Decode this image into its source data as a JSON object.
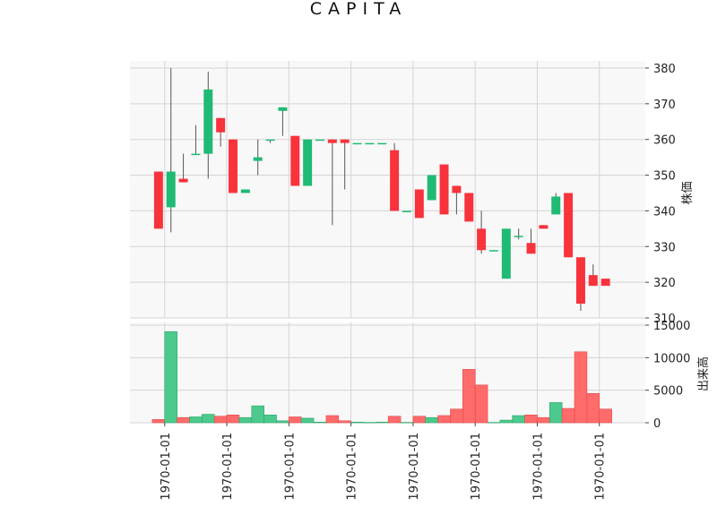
{
  "chart_data": {
    "type": "candlestick",
    "title": "CAPITA",
    "price_axis_label": "株価",
    "volume_axis_label": "出来高",
    "price_ylim": [
      310,
      382
    ],
    "price_ticks": [
      310,
      320,
      330,
      340,
      350,
      360,
      370,
      380
    ],
    "volume_ylim": [
      0,
      15000
    ],
    "volume_ticks": [
      0,
      5000,
      10000,
      15000
    ],
    "volume_tick_labels": [
      "0",
      "5000",
      "10000",
      "15000"
    ],
    "x_tick_labels": [
      "1970-01-01",
      "1970-01-01",
      "1970-01-01",
      "1970-01-01",
      "1970-01-01",
      "1970-01-01",
      "1970-01-01",
      "1970-01-01"
    ],
    "x_tick_index": [
      0.5,
      5.5,
      10.5,
      15.5,
      20.5,
      25.5,
      30.5,
      35.5
    ],
    "grid": true,
    "colors": {
      "up": "#1fba73",
      "down": "#f8333c",
      "up_volume": "#4cc98c",
      "down_volume": "#ff6b6b",
      "wick": "#555555",
      "panel_bg": "#f8f8f8",
      "grid": "#d4d4d4"
    },
    "candles": [
      {
        "open": 351,
        "high": 351,
        "low": 335,
        "close": 335,
        "volume": 500
      },
      {
        "open": 341,
        "high": 380,
        "low": 334,
        "close": 351,
        "volume": 14000
      },
      {
        "open": 349,
        "high": 356,
        "low": 348,
        "close": 348,
        "volume": 800
      },
      {
        "open": 356,
        "high": 364,
        "low": 356,
        "close": 356,
        "volume": 900
      },
      {
        "open": 356,
        "high": 379,
        "low": 349,
        "close": 374,
        "volume": 1300
      },
      {
        "open": 366,
        "high": 366,
        "low": 358,
        "close": 362,
        "volume": 1000
      },
      {
        "open": 360,
        "high": 360,
        "low": 345,
        "close": 345,
        "volume": 1200
      },
      {
        "open": 345,
        "high": 346,
        "low": 345,
        "close": 346,
        "volume": 800
      },
      {
        "open": 354,
        "high": 360,
        "low": 350,
        "close": 355,
        "volume": 2600
      },
      {
        "open": 360,
        "high": 360,
        "low": 359,
        "close": 360,
        "volume": 1200
      },
      {
        "open": 368,
        "high": 369,
        "low": 361,
        "close": 369,
        "volume": 300
      },
      {
        "open": 361,
        "high": 361,
        "low": 347,
        "close": 347,
        "volume": 900
      },
      {
        "open": 347,
        "high": 360,
        "low": 347,
        "close": 360,
        "volume": 700
      },
      {
        "open": 360,
        "high": 360,
        "low": 360,
        "close": 360,
        "volume": 100
      },
      {
        "open": 360,
        "high": 360,
        "low": 336,
        "close": 359,
        "volume": 1100
      },
      {
        "open": 360,
        "high": 360,
        "low": 346,
        "close": 359,
        "volume": 300
      },
      {
        "open": 359,
        "high": 359,
        "low": 359,
        "close": 359,
        "volume": 100
      },
      {
        "open": 359,
        "high": 359,
        "low": 359,
        "close": 359,
        "volume": 50
      },
      {
        "open": 359,
        "high": 359,
        "low": 359,
        "close": 359,
        "volume": 100
      },
      {
        "open": 357,
        "high": 359,
        "low": 340,
        "close": 340,
        "volume": 1000
      },
      {
        "open": 340,
        "high": 340,
        "low": 340,
        "close": 340,
        "volume": 50
      },
      {
        "open": 346,
        "high": 346,
        "low": 338,
        "close": 338,
        "volume": 1000
      },
      {
        "open": 343,
        "high": 350,
        "low": 343,
        "close": 350,
        "volume": 800
      },
      {
        "open": 353,
        "high": 353,
        "low": 339,
        "close": 339,
        "volume": 1100
      },
      {
        "open": 347,
        "high": 347,
        "low": 339,
        "close": 345,
        "volume": 2100
      },
      {
        "open": 345,
        "high": 345,
        "low": 337,
        "close": 337,
        "volume": 8200
      },
      {
        "open": 335,
        "high": 340,
        "low": 328,
        "close": 329,
        "volume": 5800
      },
      {
        "open": 329,
        "high": 329,
        "low": 329,
        "close": 329,
        "volume": 50
      },
      {
        "open": 321,
        "high": 335,
        "low": 321,
        "close": 335,
        "volume": 400
      },
      {
        "open": 333,
        "high": 335,
        "low": 332,
        "close": 333,
        "volume": 1100
      },
      {
        "open": 331,
        "high": 335,
        "low": 328,
        "close": 328,
        "volume": 1200
      },
      {
        "open": 336,
        "high": 336,
        "low": 335,
        "close": 335,
        "volume": 800
      },
      {
        "open": 339,
        "high": 345,
        "low": 339,
        "close": 344,
        "volume": 3100
      },
      {
        "open": 345,
        "high": 345,
        "low": 327,
        "close": 327,
        "volume": 2200
      },
      {
        "open": 327,
        "high": 327,
        "low": 312,
        "close": 314,
        "volume": 10900
      },
      {
        "open": 322,
        "high": 325,
        "low": 319,
        "close": 319,
        "volume": 4500
      },
      {
        "open": 321,
        "high": 321,
        "low": 319,
        "close": 319,
        "volume": 2100
      }
    ]
  }
}
